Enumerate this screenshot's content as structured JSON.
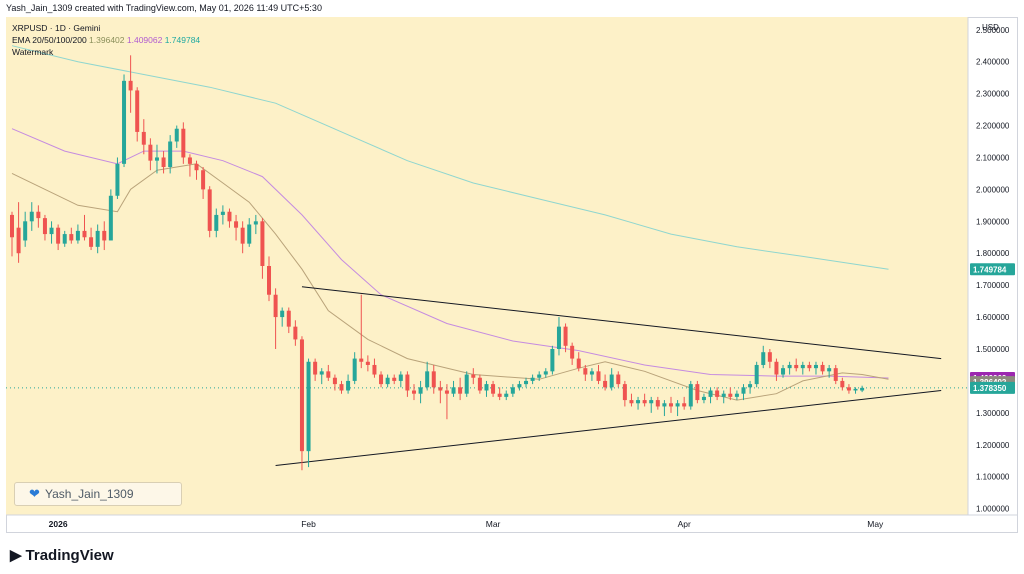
{
  "caption": "Yash_Jain_1309 created with TradingView.com, May 01, 2026 11:49 UTC+5:30",
  "legend": {
    "symbol_line": "XRPUSD · 1D · Gemini",
    "ema_label": "EMA 20/50/100/200",
    "ema_v1": "1.396402",
    "ema_v2": "1.409062",
    "ema_v3": "1.749784",
    "watermark_label": "Watermark"
  },
  "watermark_text": "Yash_Jain_1309",
  "logo_text": "TradingView",
  "colors": {
    "background": "#fdf1c8",
    "up": "#26a69a",
    "down": "#ef5350",
    "ema20": "#b9a37a",
    "ema100": "#c58be0",
    "ema200": "#8fd6cf",
    "trendline": "#131722"
  },
  "chart_data": {
    "type": "candlestick",
    "currency_label": "USD",
    "y_ticks": [
      "2.500000",
      "2.400000",
      "2.300000",
      "2.200000",
      "2.100000",
      "2.000000",
      "1.900000",
      "1.800000",
      "1.700000",
      "1.600000",
      "1.500000",
      "1.400000",
      "1.300000",
      "1.200000",
      "1.100000",
      "1.000000"
    ],
    "ylim": [
      0.98,
      2.54
    ],
    "x_labels": [
      "2026",
      "Feb",
      "Mar",
      "Apr",
      "May"
    ],
    "price_tags": [
      {
        "value": 1.749784,
        "label": "1.749784",
        "color": "#26a69a"
      },
      {
        "value": 1.409062,
        "label": "1.409062",
        "color": "#9c27b0"
      },
      {
        "value": 1.396402,
        "label": "1.396402",
        "color": "#8d8a7e"
      },
      {
        "value": 1.37835,
        "label": "1.378350",
        "color": "#26a69a"
      }
    ],
    "candles": [
      {
        "o": 1.92,
        "h": 1.93,
        "l": 1.79,
        "c": 1.85
      },
      {
        "o": 1.88,
        "h": 1.96,
        "l": 1.77,
        "c": 1.8
      },
      {
        "o": 1.84,
        "h": 1.93,
        "l": 1.82,
        "c": 1.9
      },
      {
        "o": 1.9,
        "h": 1.96,
        "l": 1.87,
        "c": 1.93
      },
      {
        "o": 1.93,
        "h": 1.95,
        "l": 1.88,
        "c": 1.91
      },
      {
        "o": 1.91,
        "h": 1.92,
        "l": 1.84,
        "c": 1.86
      },
      {
        "o": 1.86,
        "h": 1.9,
        "l": 1.83,
        "c": 1.88
      },
      {
        "o": 1.88,
        "h": 1.89,
        "l": 1.81,
        "c": 1.83
      },
      {
        "o": 1.83,
        "h": 1.87,
        "l": 1.82,
        "c": 1.86
      },
      {
        "o": 1.86,
        "h": 1.88,
        "l": 1.83,
        "c": 1.84
      },
      {
        "o": 1.84,
        "h": 1.89,
        "l": 1.83,
        "c": 1.87
      },
      {
        "o": 1.87,
        "h": 1.92,
        "l": 1.84,
        "c": 1.85
      },
      {
        "o": 1.85,
        "h": 1.88,
        "l": 1.81,
        "c": 1.82
      },
      {
        "o": 1.82,
        "h": 1.89,
        "l": 1.8,
        "c": 1.87
      },
      {
        "o": 1.87,
        "h": 1.9,
        "l": 1.81,
        "c": 1.84
      },
      {
        "o": 1.84,
        "h": 2.0,
        "l": 1.84,
        "c": 1.98
      },
      {
        "o": 1.98,
        "h": 2.1,
        "l": 1.97,
        "c": 2.08
      },
      {
        "o": 2.08,
        "h": 2.36,
        "l": 2.07,
        "c": 2.34
      },
      {
        "o": 2.34,
        "h": 2.42,
        "l": 2.24,
        "c": 2.31
      },
      {
        "o": 2.31,
        "h": 2.32,
        "l": 2.15,
        "c": 2.18
      },
      {
        "o": 2.18,
        "h": 2.22,
        "l": 2.11,
        "c": 2.14
      },
      {
        "o": 2.14,
        "h": 2.16,
        "l": 2.06,
        "c": 2.09
      },
      {
        "o": 2.09,
        "h": 2.14,
        "l": 2.05,
        "c": 2.1
      },
      {
        "o": 2.1,
        "h": 2.12,
        "l": 2.05,
        "c": 2.07
      },
      {
        "o": 2.07,
        "h": 2.17,
        "l": 2.05,
        "c": 2.15
      },
      {
        "o": 2.15,
        "h": 2.2,
        "l": 2.13,
        "c": 2.19
      },
      {
        "o": 2.19,
        "h": 2.21,
        "l": 2.08,
        "c": 2.1
      },
      {
        "o": 2.1,
        "h": 2.11,
        "l": 2.04,
        "c": 2.08
      },
      {
        "o": 2.08,
        "h": 2.09,
        "l": 2.03,
        "c": 2.06
      },
      {
        "o": 2.06,
        "h": 2.07,
        "l": 1.97,
        "c": 2.0
      },
      {
        "o": 2.0,
        "h": 2.01,
        "l": 1.85,
        "c": 1.87
      },
      {
        "o": 1.87,
        "h": 1.94,
        "l": 1.85,
        "c": 1.92
      },
      {
        "o": 1.92,
        "h": 1.95,
        "l": 1.89,
        "c": 1.93
      },
      {
        "o": 1.93,
        "h": 1.94,
        "l": 1.88,
        "c": 1.9
      },
      {
        "o": 1.9,
        "h": 1.92,
        "l": 1.84,
        "c": 1.88
      },
      {
        "o": 1.88,
        "h": 1.9,
        "l": 1.8,
        "c": 1.83
      },
      {
        "o": 1.83,
        "h": 1.91,
        "l": 1.82,
        "c": 1.89
      },
      {
        "o": 1.89,
        "h": 1.92,
        "l": 1.86,
        "c": 1.9
      },
      {
        "o": 1.9,
        "h": 1.91,
        "l": 1.72,
        "c": 1.76
      },
      {
        "o": 1.76,
        "h": 1.79,
        "l": 1.65,
        "c": 1.67
      },
      {
        "o": 1.67,
        "h": 1.69,
        "l": 1.5,
        "c": 1.6
      },
      {
        "o": 1.6,
        "h": 1.63,
        "l": 1.57,
        "c": 1.62
      },
      {
        "o": 1.62,
        "h": 1.63,
        "l": 1.55,
        "c": 1.57
      },
      {
        "o": 1.57,
        "h": 1.59,
        "l": 1.51,
        "c": 1.53
      },
      {
        "o": 1.53,
        "h": 1.54,
        "l": 1.12,
        "c": 1.18
      },
      {
        "o": 1.18,
        "h": 1.47,
        "l": 1.13,
        "c": 1.46
      },
      {
        "o": 1.46,
        "h": 1.47,
        "l": 1.4,
        "c": 1.42
      },
      {
        "o": 1.42,
        "h": 1.44,
        "l": 1.39,
        "c": 1.43
      },
      {
        "o": 1.43,
        "h": 1.45,
        "l": 1.4,
        "c": 1.41
      },
      {
        "o": 1.41,
        "h": 1.42,
        "l": 1.37,
        "c": 1.39
      },
      {
        "o": 1.39,
        "h": 1.4,
        "l": 1.36,
        "c": 1.37
      },
      {
        "o": 1.37,
        "h": 1.42,
        "l": 1.36,
        "c": 1.4
      },
      {
        "o": 1.4,
        "h": 1.49,
        "l": 1.39,
        "c": 1.47
      },
      {
        "o": 1.47,
        "h": 1.67,
        "l": 1.44,
        "c": 1.46
      },
      {
        "o": 1.46,
        "h": 1.48,
        "l": 1.43,
        "c": 1.45
      },
      {
        "o": 1.45,
        "h": 1.47,
        "l": 1.41,
        "c": 1.42
      },
      {
        "o": 1.42,
        "h": 1.43,
        "l": 1.38,
        "c": 1.39
      },
      {
        "o": 1.39,
        "h": 1.42,
        "l": 1.38,
        "c": 1.41
      },
      {
        "o": 1.41,
        "h": 1.42,
        "l": 1.39,
        "c": 1.4
      },
      {
        "o": 1.4,
        "h": 1.43,
        "l": 1.38,
        "c": 1.42
      },
      {
        "o": 1.42,
        "h": 1.43,
        "l": 1.35,
        "c": 1.37
      },
      {
        "o": 1.37,
        "h": 1.39,
        "l": 1.34,
        "c": 1.36
      },
      {
        "o": 1.36,
        "h": 1.4,
        "l": 1.33,
        "c": 1.38
      },
      {
        "o": 1.38,
        "h": 1.46,
        "l": 1.37,
        "c": 1.43
      },
      {
        "o": 1.43,
        "h": 1.45,
        "l": 1.36,
        "c": 1.38
      },
      {
        "o": 1.38,
        "h": 1.4,
        "l": 1.33,
        "c": 1.37
      },
      {
        "o": 1.37,
        "h": 1.39,
        "l": 1.28,
        "c": 1.36
      },
      {
        "o": 1.36,
        "h": 1.4,
        "l": 1.35,
        "c": 1.38
      },
      {
        "o": 1.38,
        "h": 1.41,
        "l": 1.34,
        "c": 1.36
      },
      {
        "o": 1.36,
        "h": 1.43,
        "l": 1.35,
        "c": 1.42
      },
      {
        "o": 1.42,
        "h": 1.44,
        "l": 1.39,
        "c": 1.41
      },
      {
        "o": 1.41,
        "h": 1.42,
        "l": 1.36,
        "c": 1.37
      },
      {
        "o": 1.37,
        "h": 1.4,
        "l": 1.35,
        "c": 1.39
      },
      {
        "o": 1.39,
        "h": 1.4,
        "l": 1.35,
        "c": 1.36
      },
      {
        "o": 1.36,
        "h": 1.38,
        "l": 1.34,
        "c": 1.35
      },
      {
        "o": 1.35,
        "h": 1.37,
        "l": 1.34,
        "c": 1.36
      },
      {
        "o": 1.36,
        "h": 1.39,
        "l": 1.35,
        "c": 1.38
      },
      {
        "o": 1.38,
        "h": 1.4,
        "l": 1.37,
        "c": 1.39
      },
      {
        "o": 1.39,
        "h": 1.41,
        "l": 1.38,
        "c": 1.4
      },
      {
        "o": 1.4,
        "h": 1.42,
        "l": 1.39,
        "c": 1.41
      },
      {
        "o": 1.41,
        "h": 1.43,
        "l": 1.4,
        "c": 1.42
      },
      {
        "o": 1.42,
        "h": 1.44,
        "l": 1.41,
        "c": 1.43
      },
      {
        "o": 1.43,
        "h": 1.51,
        "l": 1.42,
        "c": 1.5
      },
      {
        "o": 1.5,
        "h": 1.6,
        "l": 1.48,
        "c": 1.57
      },
      {
        "o": 1.57,
        "h": 1.58,
        "l": 1.49,
        "c": 1.51
      },
      {
        "o": 1.51,
        "h": 1.52,
        "l": 1.45,
        "c": 1.47
      },
      {
        "o": 1.47,
        "h": 1.49,
        "l": 1.43,
        "c": 1.44
      },
      {
        "o": 1.44,
        "h": 1.45,
        "l": 1.4,
        "c": 1.42
      },
      {
        "o": 1.42,
        "h": 1.44,
        "l": 1.4,
        "c": 1.43
      },
      {
        "o": 1.43,
        "h": 1.45,
        "l": 1.39,
        "c": 1.4
      },
      {
        "o": 1.4,
        "h": 1.42,
        "l": 1.37,
        "c": 1.38
      },
      {
        "o": 1.38,
        "h": 1.44,
        "l": 1.37,
        "c": 1.42
      },
      {
        "o": 1.42,
        "h": 1.43,
        "l": 1.38,
        "c": 1.39
      },
      {
        "o": 1.39,
        "h": 1.4,
        "l": 1.32,
        "c": 1.34
      },
      {
        "o": 1.34,
        "h": 1.36,
        "l": 1.32,
        "c": 1.33
      },
      {
        "o": 1.33,
        "h": 1.35,
        "l": 1.31,
        "c": 1.34
      },
      {
        "o": 1.34,
        "h": 1.36,
        "l": 1.32,
        "c": 1.33
      },
      {
        "o": 1.33,
        "h": 1.35,
        "l": 1.3,
        "c": 1.34
      },
      {
        "o": 1.34,
        "h": 1.35,
        "l": 1.31,
        "c": 1.32
      },
      {
        "o": 1.32,
        "h": 1.34,
        "l": 1.29,
        "c": 1.33
      },
      {
        "o": 1.33,
        "h": 1.35,
        "l": 1.3,
        "c": 1.32
      },
      {
        "o": 1.32,
        "h": 1.34,
        "l": 1.29,
        "c": 1.33
      },
      {
        "o": 1.33,
        "h": 1.35,
        "l": 1.31,
        "c": 1.32
      },
      {
        "o": 1.32,
        "h": 1.4,
        "l": 1.31,
        "c": 1.39
      },
      {
        "o": 1.39,
        "h": 1.4,
        "l": 1.33,
        "c": 1.34
      },
      {
        "o": 1.34,
        "h": 1.36,
        "l": 1.33,
        "c": 1.35
      },
      {
        "o": 1.35,
        "h": 1.38,
        "l": 1.33,
        "c": 1.37
      },
      {
        "o": 1.37,
        "h": 1.38,
        "l": 1.34,
        "c": 1.35
      },
      {
        "o": 1.35,
        "h": 1.37,
        "l": 1.33,
        "c": 1.36
      },
      {
        "o": 1.36,
        "h": 1.38,
        "l": 1.34,
        "c": 1.35
      },
      {
        "o": 1.35,
        "h": 1.37,
        "l": 1.34,
        "c": 1.36
      },
      {
        "o": 1.36,
        "h": 1.39,
        "l": 1.34,
        "c": 1.38
      },
      {
        "o": 1.38,
        "h": 1.4,
        "l": 1.36,
        "c": 1.39
      },
      {
        "o": 1.39,
        "h": 1.46,
        "l": 1.38,
        "c": 1.45
      },
      {
        "o": 1.45,
        "h": 1.51,
        "l": 1.44,
        "c": 1.49
      },
      {
        "o": 1.49,
        "h": 1.5,
        "l": 1.44,
        "c": 1.46
      },
      {
        "o": 1.46,
        "h": 1.47,
        "l": 1.4,
        "c": 1.42
      },
      {
        "o": 1.42,
        "h": 1.45,
        "l": 1.41,
        "c": 1.44
      },
      {
        "o": 1.44,
        "h": 1.46,
        "l": 1.42,
        "c": 1.45
      },
      {
        "o": 1.45,
        "h": 1.47,
        "l": 1.43,
        "c": 1.44
      },
      {
        "o": 1.44,
        "h": 1.46,
        "l": 1.42,
        "c": 1.45
      },
      {
        "o": 1.45,
        "h": 1.46,
        "l": 1.43,
        "c": 1.44
      },
      {
        "o": 1.44,
        "h": 1.46,
        "l": 1.42,
        "c": 1.45
      },
      {
        "o": 1.45,
        "h": 1.46,
        "l": 1.42,
        "c": 1.43
      },
      {
        "o": 1.43,
        "h": 1.45,
        "l": 1.41,
        "c": 1.44
      },
      {
        "o": 1.44,
        "h": 1.45,
        "l": 1.39,
        "c": 1.4
      },
      {
        "o": 1.4,
        "h": 1.41,
        "l": 1.37,
        "c": 1.38
      },
      {
        "o": 1.38,
        "h": 1.39,
        "l": 1.36,
        "c": 1.37
      },
      {
        "o": 1.37,
        "h": 1.38,
        "l": 1.36,
        "c": 1.375
      },
      {
        "o": 1.37,
        "h": 1.385,
        "l": 1.365,
        "c": 1.3783
      }
    ],
    "ema20": [
      [
        0,
        2.05
      ],
      [
        10,
        1.95
      ],
      [
        16,
        1.93
      ],
      [
        18,
        2.0
      ],
      [
        22,
        2.06
      ],
      [
        28,
        2.08
      ],
      [
        32,
        2.02
      ],
      [
        36,
        1.96
      ],
      [
        40,
        1.86
      ],
      [
        44,
        1.75
      ],
      [
        48,
        1.62
      ],
      [
        54,
        1.53
      ],
      [
        60,
        1.47
      ],
      [
        70,
        1.42
      ],
      [
        80,
        1.405
      ],
      [
        86,
        1.44
      ],
      [
        90,
        1.46
      ],
      [
        96,
        1.43
      ],
      [
        104,
        1.37
      ],
      [
        110,
        1.34
      ],
      [
        116,
        1.36
      ],
      [
        120,
        1.4
      ],
      [
        126,
        1.425
      ],
      [
        129,
        1.42
      ],
      [
        133,
        1.405
      ]
    ],
    "ema100": [
      [
        0,
        2.19
      ],
      [
        8,
        2.12
      ],
      [
        16,
        2.08
      ],
      [
        20,
        2.12
      ],
      [
        26,
        2.12
      ],
      [
        32,
        2.09
      ],
      [
        38,
        2.04
      ],
      [
        44,
        1.92
      ],
      [
        50,
        1.78
      ],
      [
        56,
        1.67
      ],
      [
        66,
        1.58
      ],
      [
        76,
        1.525
      ],
      [
        86,
        1.495
      ],
      [
        96,
        1.45
      ],
      [
        106,
        1.42
      ],
      [
        116,
        1.415
      ],
      [
        124,
        1.415
      ],
      [
        133,
        1.409
      ]
    ],
    "ema200": [
      [
        0,
        2.45
      ],
      [
        10,
        2.4
      ],
      [
        20,
        2.36
      ],
      [
        30,
        2.32
      ],
      [
        40,
        2.27
      ],
      [
        50,
        2.18
      ],
      [
        60,
        2.09
      ],
      [
        70,
        2.02
      ],
      [
        80,
        1.97
      ],
      [
        90,
        1.92
      ],
      [
        100,
        1.86
      ],
      [
        110,
        1.82
      ],
      [
        120,
        1.79
      ],
      [
        133,
        1.7498
      ]
    ],
    "trendlines": [
      {
        "x1": 44,
        "y1": 1.695,
        "x2": 141,
        "y2": 1.47
      },
      {
        "x1": 40,
        "y1": 1.135,
        "x2": 141,
        "y2": 1.37
      }
    ],
    "last_price": 1.3783
  }
}
